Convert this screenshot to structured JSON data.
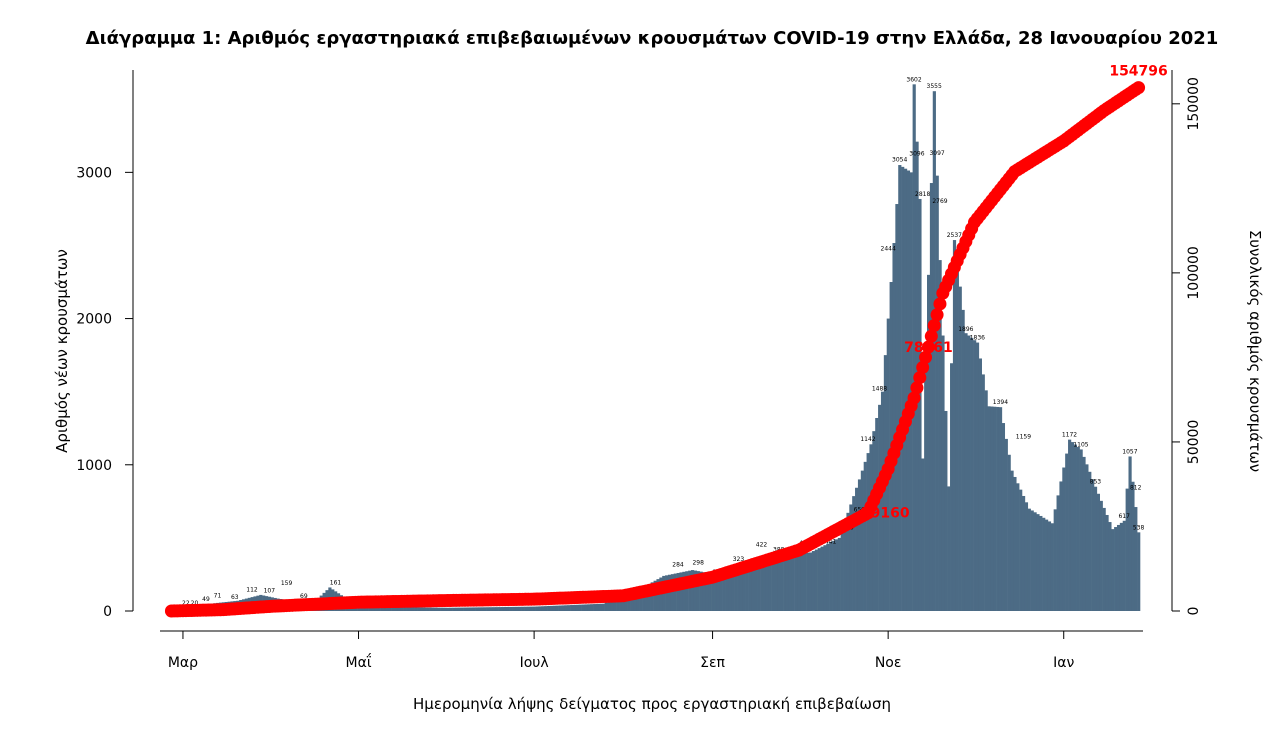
{
  "chart_data": {
    "type": "bar",
    "title": "Διάγραμμα 1: Αριθμός εργαστηριακά επιβεβαιωμένων κρουσμάτων COVID-19 στην Ελλάδα, 28 Ιανουαρίου 2021",
    "xlabel": "Ημερομηνία λήψης δείγματος προς εργαστηριακή επιβεβαίωση",
    "ylabel": "Αριθμός νέων κρουσμάτων",
    "y2label": "Συνολικός αριθμός κρουσμάτων",
    "x_start": "2020-02-26",
    "x_end": "2021-01-27",
    "xticks": [
      {
        "date": "2020-03-01",
        "label": "Μαρ"
      },
      {
        "date": "2020-05-01",
        "label": "Μαΐ"
      },
      {
        "date": "2020-07-01",
        "label": "Ιουλ"
      },
      {
        "date": "2020-09-01",
        "label": "Σεπ"
      },
      {
        "date": "2020-11-01",
        "label": "Νοε"
      },
      {
        "date": "2021-01-01",
        "label": "Ιαν"
      }
    ],
    "ylim": [
      0,
      3700
    ],
    "yticks": [
      0,
      1000,
      2000,
      3000
    ],
    "y2lim": [
      0,
      160000
    ],
    "y2ticks": [
      0,
      50000,
      100000,
      150000
    ],
    "colors": {
      "bars": "#4c6b85",
      "cumulative": "#ff0000"
    },
    "series": [
      {
        "name": "Αριθμός νέων κρουσμάτων",
        "type": "bar",
        "anchors": [
          {
            "date": "2020-02-26",
            "value": 2
          },
          {
            "date": "2020-03-03",
            "value": 20
          },
          {
            "date": "2020-03-10",
            "value": 49
          },
          {
            "date": "2020-03-20",
            "value": 70
          },
          {
            "date": "2020-03-28",
            "value": 110
          },
          {
            "date": "2020-04-03",
            "value": 85
          },
          {
            "date": "2020-04-15",
            "value": 50
          },
          {
            "date": "2020-04-21",
            "value": 161
          },
          {
            "date": "2020-05-01",
            "value": 28
          },
          {
            "date": "2020-06-01",
            "value": 22
          },
          {
            "date": "2020-07-01",
            "value": 30
          },
          {
            "date": "2020-07-25",
            "value": 50
          },
          {
            "date": "2020-08-05",
            "value": 130
          },
          {
            "date": "2020-08-15",
            "value": 240
          },
          {
            "date": "2020-08-25",
            "value": 280
          },
          {
            "date": "2020-09-05",
            "value": 240
          },
          {
            "date": "2020-09-15",
            "value": 330
          },
          {
            "date": "2020-09-25",
            "value": 380
          },
          {
            "date": "2020-10-05",
            "value": 400
          },
          {
            "date": "2020-10-15",
            "value": 500
          },
          {
            "date": "2020-10-22",
            "value": 900
          },
          {
            "date": "2020-10-26",
            "value": 1140
          },
          {
            "date": "2020-10-30",
            "value": 1500
          },
          {
            "date": "2020-11-02",
            "value": 2250
          },
          {
            "date": "2020-11-05",
            "value": 3050
          },
          {
            "date": "2020-11-09",
            "value": 3000
          },
          {
            "date": "2020-11-10",
            "value": 3602
          },
          {
            "date": "2020-11-12",
            "value": 2818
          },
          {
            "date": "2020-11-13",
            "value": 1043
          },
          {
            "date": "2020-11-17",
            "value": 3555
          },
          {
            "date": "2020-11-19",
            "value": 2400
          },
          {
            "date": "2020-11-22",
            "value": 852
          },
          {
            "date": "2020-11-24",
            "value": 2537
          },
          {
            "date": "2020-11-28",
            "value": 1900
          },
          {
            "date": "2020-12-02",
            "value": 1836
          },
          {
            "date": "2020-12-06",
            "value": 1400
          },
          {
            "date": "2020-12-10",
            "value": 1394
          },
          {
            "date": "2020-12-14",
            "value": 960
          },
          {
            "date": "2020-12-20",
            "value": 700
          },
          {
            "date": "2020-12-28",
            "value": 600
          },
          {
            "date": "2021-01-03",
            "value": 1172
          },
          {
            "date": "2021-01-07",
            "value": 1105
          },
          {
            "date": "2021-01-12",
            "value": 850
          },
          {
            "date": "2021-01-18",
            "value": 560
          },
          {
            "date": "2021-01-22",
            "value": 617
          },
          {
            "date": "2021-01-24",
            "value": 1057
          },
          {
            "date": "2021-01-27",
            "value": 538
          }
        ]
      },
      {
        "name": "Συνολικός αριθμός κρουσμάτων",
        "type": "cumulative",
        "axis": "right",
        "anchors": [
          {
            "date": "2020-02-26",
            "value": 0
          },
          {
            "date": "2020-03-15",
            "value": 400
          },
          {
            "date": "2020-04-01",
            "value": 1400
          },
          {
            "date": "2020-05-01",
            "value": 2600
          },
          {
            "date": "2020-06-01",
            "value": 3100
          },
          {
            "date": "2020-07-01",
            "value": 3500
          },
          {
            "date": "2020-08-01",
            "value": 4500
          },
          {
            "date": "2020-09-01",
            "value": 10000
          },
          {
            "date": "2020-10-01",
            "value": 18000
          },
          {
            "date": "2020-10-25",
            "value": 29000
          },
          {
            "date": "2020-11-01",
            "value": 42000
          },
          {
            "date": "2020-11-10",
            "value": 63000
          },
          {
            "date": "2020-11-15",
            "value": 78061
          },
          {
            "date": "2020-11-20",
            "value": 94000
          },
          {
            "date": "2020-12-01",
            "value": 115000
          },
          {
            "date": "2020-12-15",
            "value": 130000
          },
          {
            "date": "2021-01-01",
            "value": 139000
          },
          {
            "date": "2021-01-15",
            "value": 148000
          },
          {
            "date": "2021-01-27",
            "value": 154796
          }
        ]
      }
    ],
    "bar_labels": [
      {
        "date": "2020-03-02",
        "value": "22"
      },
      {
        "date": "2020-03-05",
        "value": "20"
      },
      {
        "date": "2020-03-09",
        "value": "49"
      },
      {
        "date": "2020-03-13",
        "value": "71"
      },
      {
        "date": "2020-03-19",
        "value": "63"
      },
      {
        "date": "2020-03-25",
        "value": "112"
      },
      {
        "date": "2020-03-31",
        "value": "107"
      },
      {
        "date": "2020-04-06",
        "value": "159"
      },
      {
        "date": "2020-04-12",
        "value": "69"
      },
      {
        "date": "2020-04-23",
        "value": "161"
      },
      {
        "date": "2020-05-06",
        "value": "33"
      },
      {
        "date": "2020-05-18",
        "value": "44"
      },
      {
        "date": "2020-06-10",
        "value": "48"
      },
      {
        "date": "2020-07-10",
        "value": "47"
      },
      {
        "date": "2020-08-20",
        "value": "284"
      },
      {
        "date": "2020-08-27",
        "value": "298"
      },
      {
        "date": "2020-09-03",
        "value": "233"
      },
      {
        "date": "2020-09-10",
        "value": "323"
      },
      {
        "date": "2020-09-18",
        "value": "422"
      },
      {
        "date": "2020-09-24",
        "value": "388"
      },
      {
        "date": "2020-10-03",
        "value": "430"
      },
      {
        "date": "2020-10-12",
        "value": "441"
      },
      {
        "date": "2020-10-18",
        "value": "536"
      },
      {
        "date": "2020-10-22",
        "value": "659"
      },
      {
        "date": "2020-10-25",
        "value": "1142"
      },
      {
        "date": "2020-10-29",
        "value": "1488"
      },
      {
        "date": "2020-11-01",
        "value": "2444"
      },
      {
        "date": "2020-11-05",
        "value": "3054"
      },
      {
        "date": "2020-11-10",
        "value": "3602"
      },
      {
        "date": "2020-11-11",
        "value": "3096"
      },
      {
        "date": "2020-11-13",
        "value": "2818"
      },
      {
        "date": "2020-11-17",
        "value": "3555"
      },
      {
        "date": "2020-11-18",
        "value": "3097"
      },
      {
        "date": "2020-11-19",
        "value": "2769"
      },
      {
        "date": "2020-11-24",
        "value": "2537"
      },
      {
        "date": "2020-11-28",
        "value": "1896"
      },
      {
        "date": "2020-12-02",
        "value": "1836"
      },
      {
        "date": "2020-12-10",
        "value": "1394"
      },
      {
        "date": "2020-12-18",
        "value": "1159"
      },
      {
        "date": "2021-01-03",
        "value": "1172"
      },
      {
        "date": "2021-01-07",
        "value": "1105"
      },
      {
        "date": "2021-01-12",
        "value": "853"
      },
      {
        "date": "2021-01-22",
        "value": "617"
      },
      {
        "date": "2021-01-24",
        "value": "1057"
      },
      {
        "date": "2021-01-26",
        "value": "812"
      },
      {
        "date": "2021-01-27",
        "value": "538"
      }
    ],
    "annotations": [
      {
        "date": "2020-10-31",
        "value": 29160,
        "text": "29160"
      },
      {
        "date": "2020-11-15",
        "value": 78061,
        "text": "78061"
      },
      {
        "date": "2021-01-27",
        "value": 154796,
        "text": "154796"
      }
    ]
  }
}
